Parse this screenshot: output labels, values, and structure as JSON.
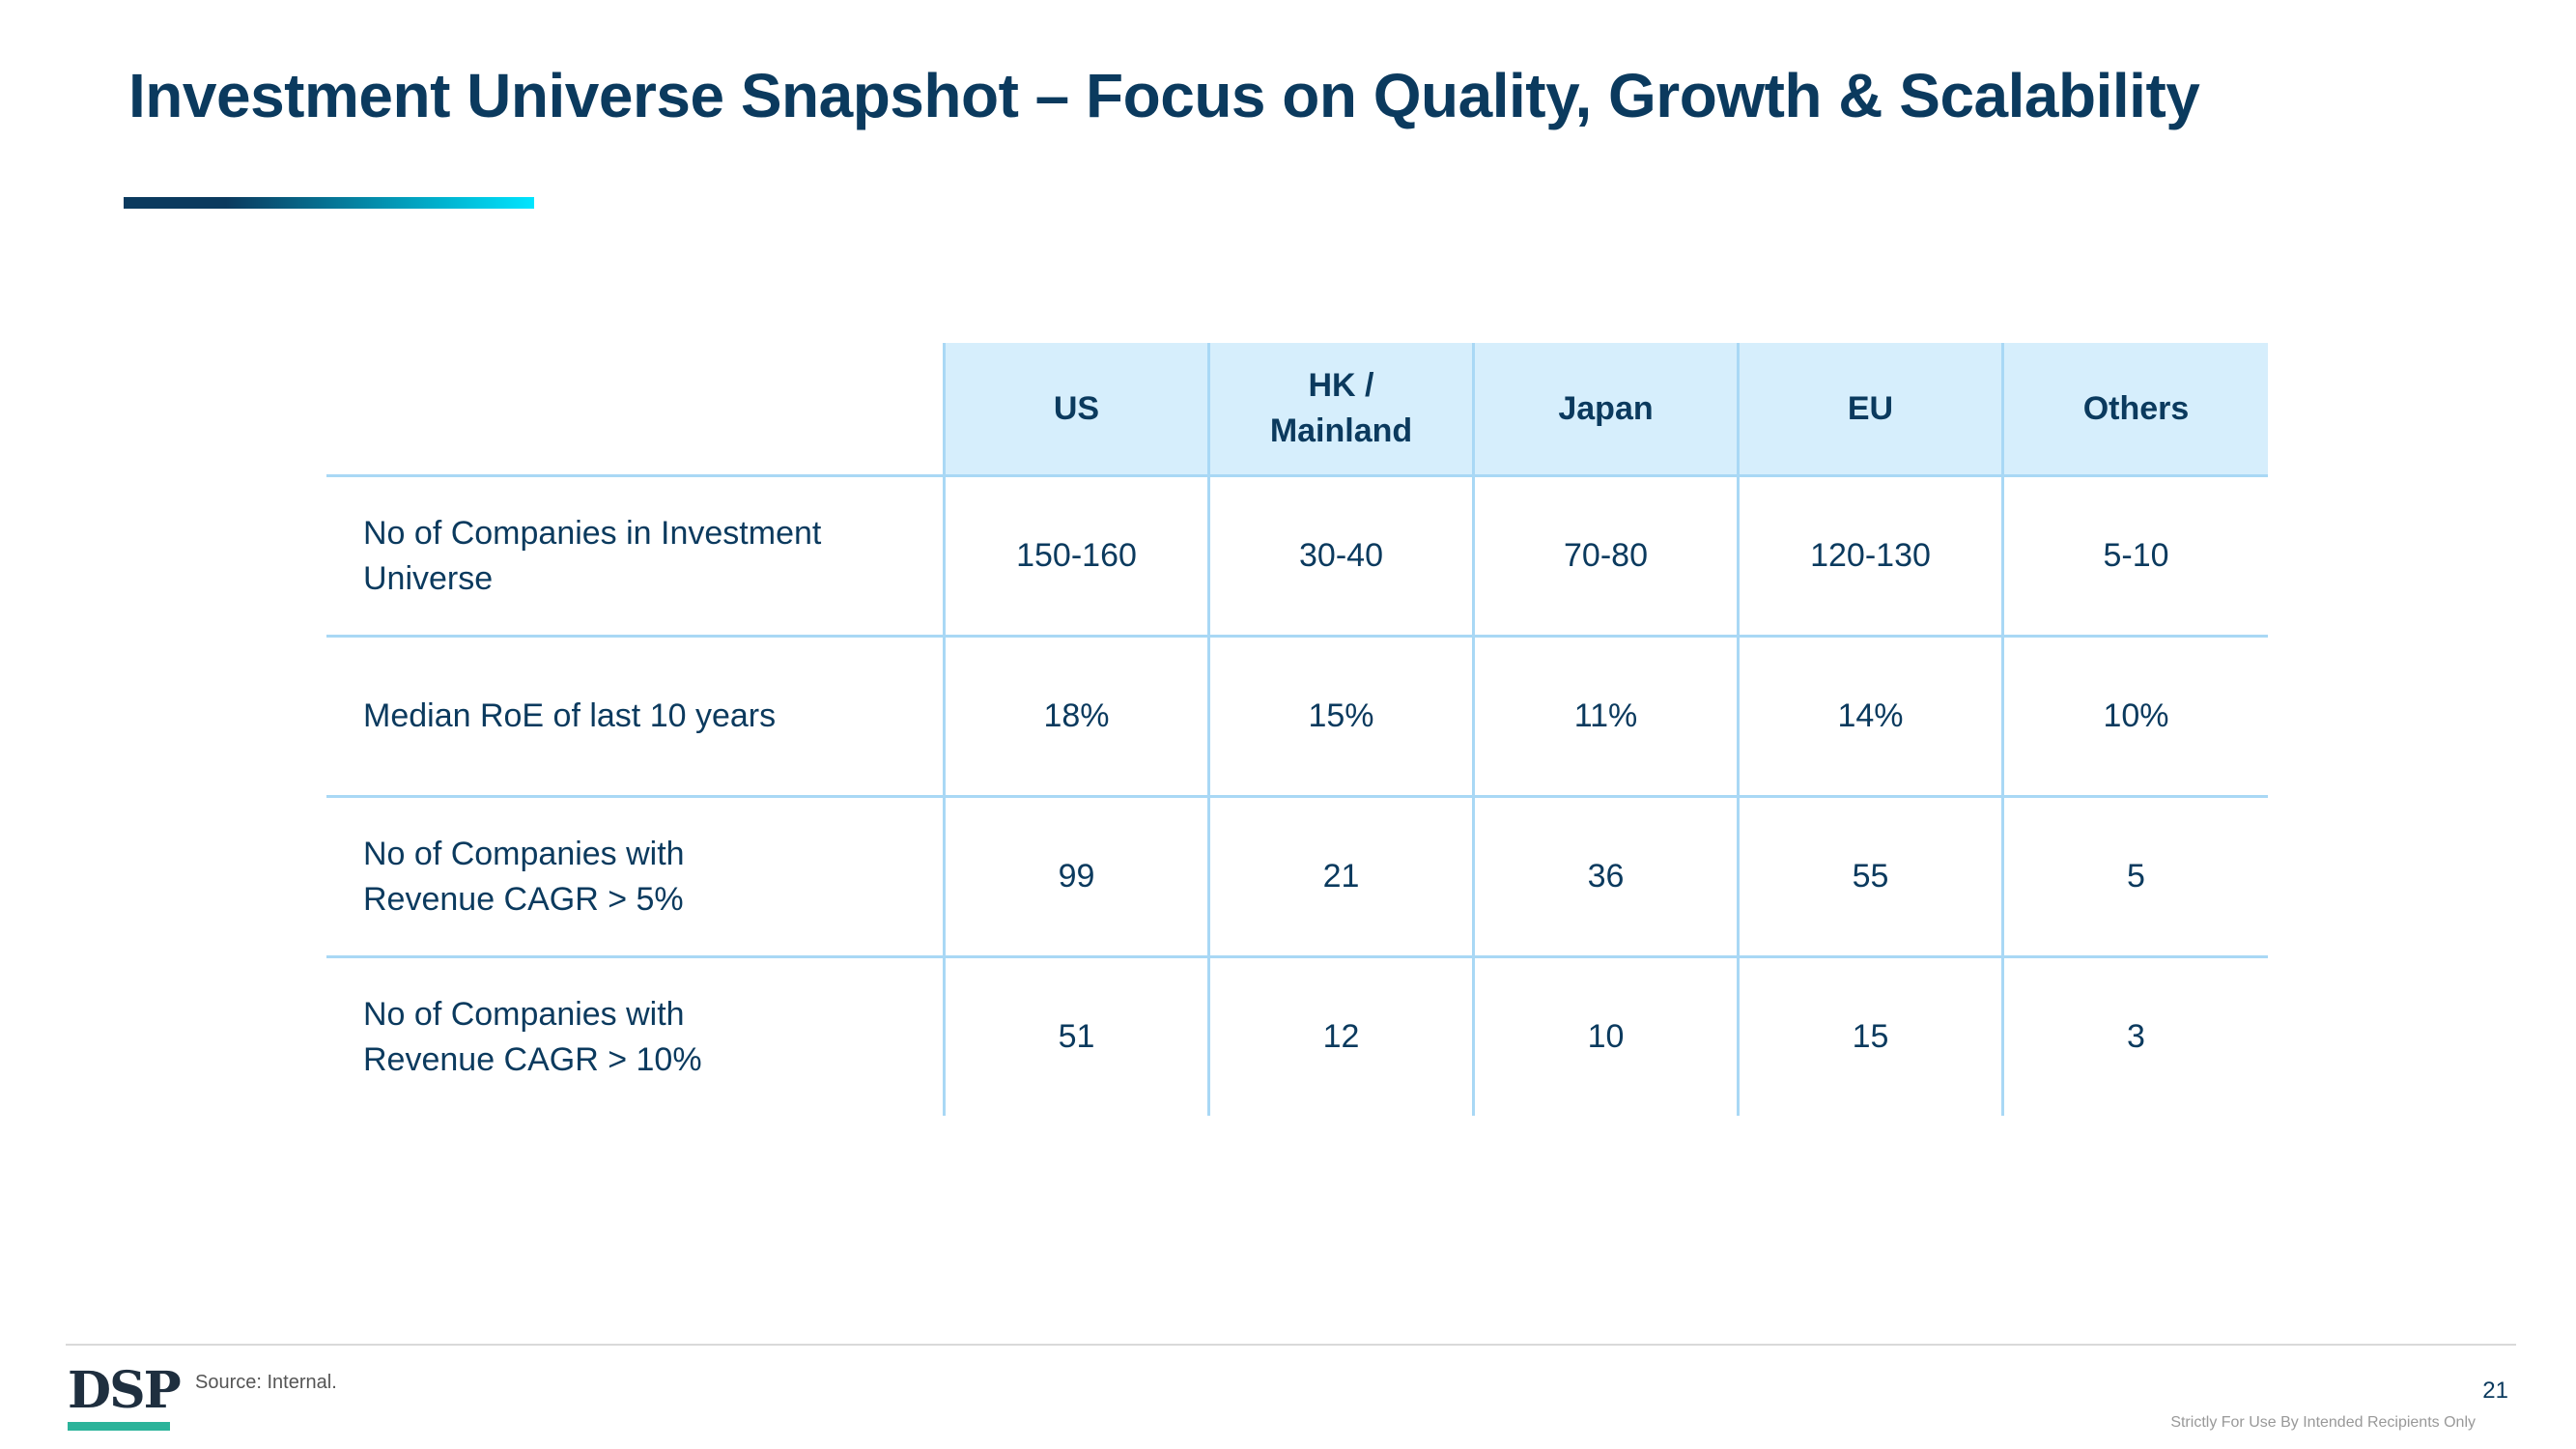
{
  "slide": {
    "title": "Investment Universe Snapshot – Focus on Quality, Growth & Scalability",
    "accent_colors": [
      "#0b3a5e",
      "#00e5ff"
    ]
  },
  "table": {
    "columns": [
      "US",
      "HK /\nMainland",
      "Japan",
      "EU",
      "Others"
    ],
    "rows": [
      {
        "label": "No of Companies in Investment\nUniverse",
        "values": [
          "150-160",
          "30-40",
          "70-80",
          "120-130",
          "5-10"
        ]
      },
      {
        "label": "Median RoE of last 10 years",
        "values": [
          "18%",
          "15%",
          "11%",
          "14%",
          "10%"
        ]
      },
      {
        "label": "No of Companies with\nRevenue CAGR > 5%",
        "values": [
          "99",
          "21",
          "36",
          "55",
          "5"
        ]
      },
      {
        "label": "No of Companies with\nRevenue CAGR > 10%",
        "values": [
          "51",
          "12",
          "10",
          "15",
          "3"
        ]
      }
    ]
  },
  "footer": {
    "logo_text": "DSP",
    "source": "Source: Internal.",
    "page_number": "21",
    "disclaimer": "Strictly For Use By Intended Recipients Only"
  }
}
